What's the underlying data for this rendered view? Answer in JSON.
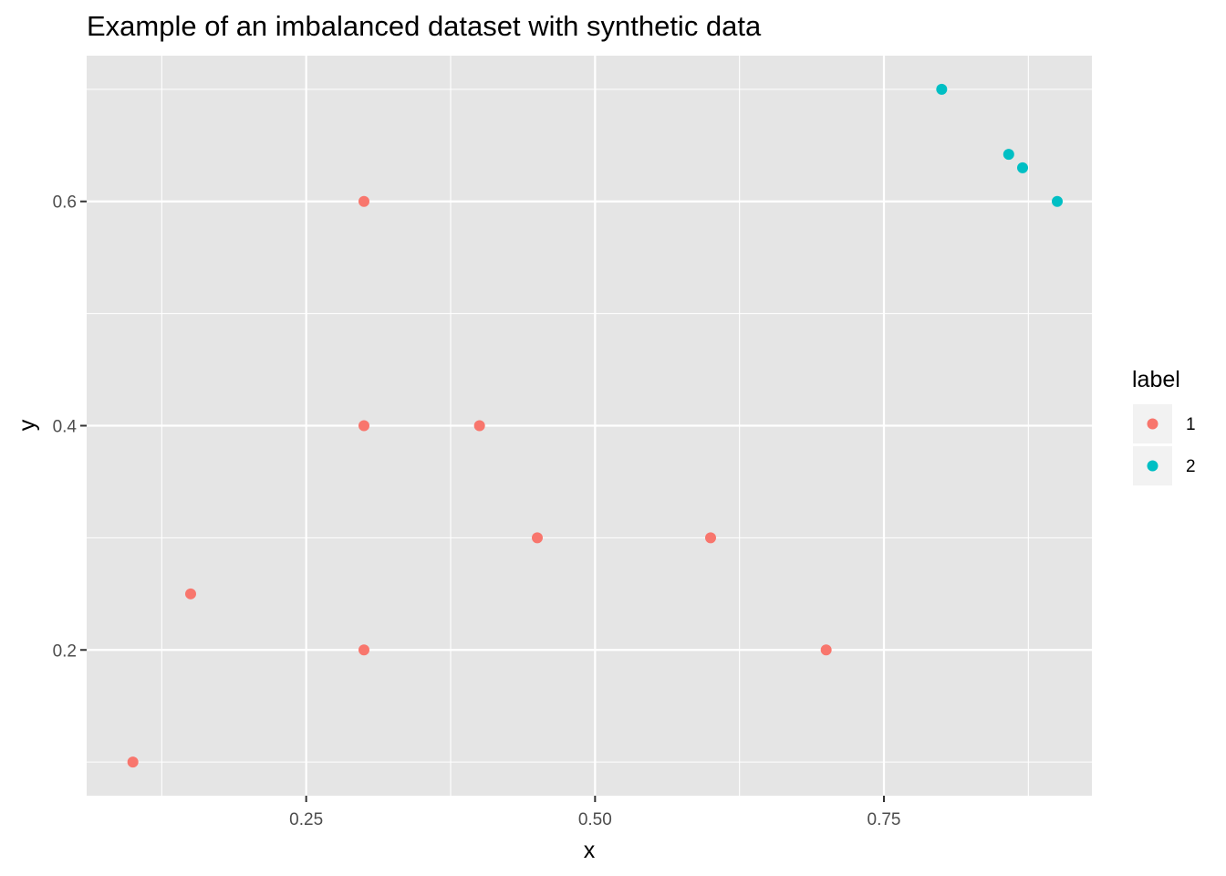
{
  "chart_data": {
    "type": "scatter",
    "title": "Example of an imbalanced dataset with synthetic data",
    "xlabel": "x",
    "ylabel": "y",
    "xlim": [
      0.06,
      0.93
    ],
    "ylim": [
      0.07,
      0.73
    ],
    "x_ticks": [
      0.25,
      0.5,
      0.75
    ],
    "x_tick_labels": [
      "0.25",
      "0.50",
      "0.75"
    ],
    "x_minor_ticks": [
      0.125,
      0.375,
      0.625,
      0.875
    ],
    "y_ticks": [
      0.2,
      0.4,
      0.6
    ],
    "y_tick_labels": [
      "0.2",
      "0.4",
      "0.6"
    ],
    "y_minor_ticks": [
      0.1,
      0.3,
      0.5,
      0.7
    ],
    "grid": true,
    "panel_background": "#e5e5e5",
    "legend": {
      "title": "label",
      "position": "right"
    },
    "series": [
      {
        "name": "1",
        "color": "#f8766d",
        "points": [
          {
            "x": 0.1,
            "y": 0.1
          },
          {
            "x": 0.15,
            "y": 0.25
          },
          {
            "x": 0.3,
            "y": 0.2
          },
          {
            "x": 0.3,
            "y": 0.4
          },
          {
            "x": 0.3,
            "y": 0.6
          },
          {
            "x": 0.4,
            "y": 0.4
          },
          {
            "x": 0.45,
            "y": 0.3
          },
          {
            "x": 0.6,
            "y": 0.3
          },
          {
            "x": 0.7,
            "y": 0.2
          }
        ]
      },
      {
        "name": "2",
        "color": "#00bfc4",
        "points": [
          {
            "x": 0.8,
            "y": 0.7
          },
          {
            "x": 0.858,
            "y": 0.642
          },
          {
            "x": 0.87,
            "y": 0.63
          },
          {
            "x": 0.9,
            "y": 0.6
          }
        ]
      }
    ]
  }
}
